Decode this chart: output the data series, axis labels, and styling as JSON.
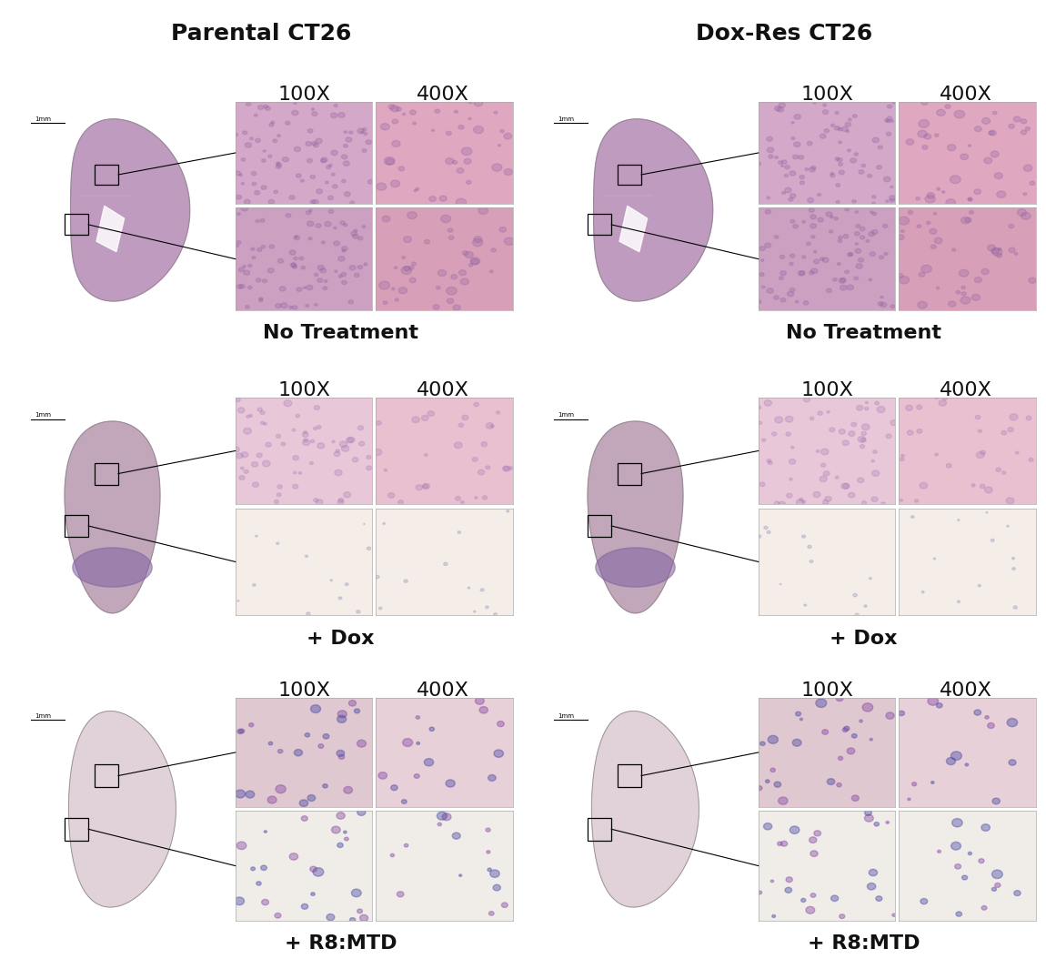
{
  "title_left": "Parental CT26",
  "title_right": "Dox-Res CT26",
  "row_labels": [
    "No Treatment",
    "+ Dox",
    "+ R8:MTD"
  ],
  "mag_labels": [
    "100X",
    "400X"
  ],
  "bg_color": "#ffffff",
  "title_fontsize": 18,
  "label_fontsize": 16,
  "mag_fontsize": 16,
  "text_color": "#111111",
  "divider_color": "#333333",
  "whole_tumor_colors": [
    "#b890b8",
    "#b898b0",
    "#d4c0c8"
  ],
  "he_colors_100x": [
    [
      "#d4a8c8",
      "#cca0c0"
    ],
    [
      "#e8c8d8",
      "#f0e8e8"
    ],
    [
      "#e0c8d0",
      "#f0e4e4"
    ]
  ],
  "he_colors_400x": [
    [
      "#e0a8c0",
      "#d8a0b8"
    ],
    [
      "#e8c0d0",
      "#f0d8e0"
    ],
    [
      "#e8d0d8",
      "#f8f0f0"
    ]
  ],
  "row_tops": [
    0.935,
    0.63,
    0.32
  ],
  "row_bottoms": [
    0.64,
    0.325,
    0.01
  ],
  "col_offsets": [
    0.01,
    0.51
  ]
}
